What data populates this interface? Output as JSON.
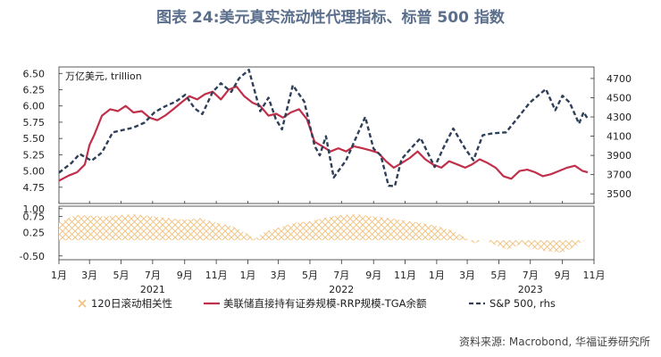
{
  "chart_data": {
    "type": "line",
    "title": "图表 24:美元真实流动性代理指标、标普 500 指数",
    "unit_label": "万亿美元, trillion",
    "source_note": "资料来源: Macrobond, 华福证券研究所",
    "x_ticks": [
      {
        "label": "1月",
        "date": "2021-01-01"
      },
      {
        "label": "3月",
        "date": "2021-03-01"
      },
      {
        "label": "5月",
        "date": "2021-05-01"
      },
      {
        "label": "7月",
        "date": "2021-07-01"
      },
      {
        "label": "9月",
        "date": "2021-09-01"
      },
      {
        "label": "11月",
        "date": "2021-11-01"
      },
      {
        "label": "1月",
        "date": "2022-01-01"
      },
      {
        "label": "3月",
        "date": "2022-03-01"
      },
      {
        "label": "5月",
        "date": "2022-05-01"
      },
      {
        "label": "7月",
        "date": "2022-07-01"
      },
      {
        "label": "9月",
        "date": "2022-09-01"
      },
      {
        "label": "11月",
        "date": "2022-11-01"
      },
      {
        "label": "1月",
        "date": "2023-01-01"
      },
      {
        "label": "3月",
        "date": "2023-03-01"
      },
      {
        "label": "5月",
        "date": "2023-05-01"
      },
      {
        "label": "7月",
        "date": "2023-07-01"
      },
      {
        "label": "9月",
        "date": "2023-09-01"
      },
      {
        "label": "11月",
        "date": "2023-11-01"
      }
    ],
    "year_labels": [
      {
        "label": "2021",
        "date": "2021-07-01"
      },
      {
        "label": "2022",
        "date": "2022-07-01"
      },
      {
        "label": "2023",
        "date": "2023-07-01"
      }
    ],
    "xlim": [
      "2021-01-01",
      "2023-11-01"
    ],
    "top_left_axis": {
      "ylim": [
        4.5,
        6.6
      ],
      "ticks": [
        "4.75",
        "5.00",
        "5.25",
        "5.50",
        "5.75",
        "6.00",
        "6.25",
        "6.50"
      ]
    },
    "top_right_axis": {
      "ylim": [
        3400,
        4820
      ],
      "ticks": [
        "3500",
        "3700",
        "3900",
        "4100",
        "4300",
        "4500",
        "4700"
      ]
    },
    "bottom_axis": {
      "ylim": [
        -0.62,
        1.08
      ],
      "ticks": [
        "1.00",
        "0.75",
        "0.25",
        "-0.50"
      ]
    },
    "series": [
      {
        "name": "美联储直接持有证券规模-RRP规模-TGA余额",
        "axis": "left",
        "color": "#c0304a",
        "style": "solid",
        "points": [
          [
            "2021-01-01",
            4.85
          ],
          [
            "2021-01-20",
            4.93
          ],
          [
            "2021-02-05",
            4.98
          ],
          [
            "2021-02-20",
            5.1
          ],
          [
            "2021-03-01",
            5.4
          ],
          [
            "2021-03-10",
            5.55
          ],
          [
            "2021-03-25",
            5.85
          ],
          [
            "2021-04-10",
            5.95
          ],
          [
            "2021-04-25",
            5.92
          ],
          [
            "2021-05-10",
            6.0
          ],
          [
            "2021-05-25",
            5.9
          ],
          [
            "2021-06-10",
            5.92
          ],
          [
            "2021-06-25",
            5.82
          ],
          [
            "2021-07-10",
            5.78
          ],
          [
            "2021-07-25",
            5.85
          ],
          [
            "2021-08-10",
            5.95
          ],
          [
            "2021-08-25",
            6.05
          ],
          [
            "2021-09-10",
            6.15
          ],
          [
            "2021-09-25",
            6.1
          ],
          [
            "2021-10-10",
            6.18
          ],
          [
            "2021-10-25",
            6.22
          ],
          [
            "2021-11-10",
            6.1
          ],
          [
            "2021-11-25",
            6.25
          ],
          [
            "2021-12-10",
            6.3
          ],
          [
            "2021-12-25",
            6.15
          ],
          [
            "2022-01-10",
            6.05
          ],
          [
            "2022-01-25",
            6.0
          ],
          [
            "2022-02-10",
            5.85
          ],
          [
            "2022-02-25",
            5.88
          ],
          [
            "2022-03-10",
            5.82
          ],
          [
            "2022-03-25",
            5.9
          ],
          [
            "2022-04-10",
            5.95
          ],
          [
            "2022-04-25",
            5.8
          ],
          [
            "2022-05-10",
            5.45
          ],
          [
            "2022-05-25",
            5.38
          ],
          [
            "2022-06-10",
            5.3
          ],
          [
            "2022-06-25",
            5.35
          ],
          [
            "2022-07-10",
            5.3
          ],
          [
            "2022-07-25",
            5.38
          ],
          [
            "2022-08-10",
            5.35
          ],
          [
            "2022-08-25",
            5.32
          ],
          [
            "2022-09-10",
            5.28
          ],
          [
            "2022-09-25",
            5.15
          ],
          [
            "2022-10-10",
            5.05
          ],
          [
            "2022-10-25",
            5.12
          ],
          [
            "2022-11-10",
            5.2
          ],
          [
            "2022-11-25",
            5.3
          ],
          [
            "2022-12-10",
            5.18
          ],
          [
            "2022-12-25",
            5.1
          ],
          [
            "2023-01-10",
            5.05
          ],
          [
            "2023-01-25",
            5.15
          ],
          [
            "2023-02-10",
            5.1
          ],
          [
            "2023-02-25",
            5.05
          ],
          [
            "2023-03-10",
            5.1
          ],
          [
            "2023-03-25",
            5.18
          ],
          [
            "2023-04-10",
            5.12
          ],
          [
            "2023-04-25",
            5.05
          ],
          [
            "2023-05-10",
            4.92
          ],
          [
            "2023-05-25",
            4.88
          ],
          [
            "2023-06-10",
            5.0
          ],
          [
            "2023-06-25",
            5.02
          ],
          [
            "2023-07-10",
            4.98
          ],
          [
            "2023-07-25",
            4.92
          ],
          [
            "2023-08-10",
            4.95
          ],
          [
            "2023-08-25",
            5.0
          ],
          [
            "2023-09-10",
            5.05
          ],
          [
            "2023-09-25",
            5.08
          ],
          [
            "2023-10-10",
            5.0
          ],
          [
            "2023-10-20",
            4.98
          ]
        ]
      },
      {
        "name": "S&P 500, rhs",
        "axis": "right",
        "color": "#2e3f58",
        "style": "dashed",
        "points": [
          [
            "2021-01-01",
            3720
          ],
          [
            "2021-01-25",
            3820
          ],
          [
            "2021-02-10",
            3915
          ],
          [
            "2021-03-05",
            3845
          ],
          [
            "2021-03-25",
            3930
          ],
          [
            "2021-04-15",
            4140
          ],
          [
            "2021-05-10",
            4170
          ],
          [
            "2021-05-25",
            4190
          ],
          [
            "2021-06-15",
            4240
          ],
          [
            "2021-07-05",
            4350
          ],
          [
            "2021-07-25",
            4410
          ],
          [
            "2021-08-15",
            4460
          ],
          [
            "2021-09-02",
            4530
          ],
          [
            "2021-09-20",
            4390
          ],
          [
            "2021-10-05",
            4330
          ],
          [
            "2021-10-25",
            4560
          ],
          [
            "2021-11-10",
            4650
          ],
          [
            "2021-11-30",
            4560
          ],
          [
            "2021-12-15",
            4700
          ],
          [
            "2022-01-03",
            4790
          ],
          [
            "2022-01-25",
            4360
          ],
          [
            "2022-02-10",
            4500
          ],
          [
            "2022-02-24",
            4280
          ],
          [
            "2022-03-08",
            4170
          ],
          [
            "2022-03-29",
            4630
          ],
          [
            "2022-04-20",
            4460
          ],
          [
            "2022-05-10",
            4000
          ],
          [
            "2022-05-20",
            3900
          ],
          [
            "2022-06-01",
            4100
          ],
          [
            "2022-06-16",
            3670
          ],
          [
            "2022-07-10",
            3850
          ],
          [
            "2022-08-01",
            4120
          ],
          [
            "2022-08-16",
            4300
          ],
          [
            "2022-09-01",
            3970
          ],
          [
            "2022-09-15",
            3900
          ],
          [
            "2022-09-30",
            3585
          ],
          [
            "2022-10-12",
            3580
          ],
          [
            "2022-10-25",
            3860
          ],
          [
            "2022-11-15",
            3990
          ],
          [
            "2022-12-01",
            4080
          ],
          [
            "2022-12-28",
            3780
          ],
          [
            "2023-01-15",
            3990
          ],
          [
            "2023-02-02",
            4180
          ],
          [
            "2023-02-25",
            3970
          ],
          [
            "2023-03-13",
            3850
          ],
          [
            "2023-03-31",
            4110
          ],
          [
            "2023-04-20",
            4130
          ],
          [
            "2023-05-15",
            4140
          ],
          [
            "2023-06-05",
            4280
          ],
          [
            "2023-06-30",
            4450
          ],
          [
            "2023-07-31",
            4590
          ],
          [
            "2023-08-18",
            4370
          ],
          [
            "2023-09-01",
            4520
          ],
          [
            "2023-09-15",
            4450
          ],
          [
            "2023-10-03",
            4230
          ],
          [
            "2023-10-12",
            4350
          ],
          [
            "2023-10-20",
            4280
          ]
        ]
      },
      {
        "name": "120日滚动相关性",
        "axis": "bottom",
        "color": "#f2c07a",
        "style": "crosshatch-area",
        "points": [
          [
            "2021-01-01",
            0.55
          ],
          [
            "2021-02-01",
            0.8
          ],
          [
            "2021-03-01",
            0.78
          ],
          [
            "2021-04-01",
            0.75
          ],
          [
            "2021-05-01",
            0.8
          ],
          [
            "2021-06-01",
            0.82
          ],
          [
            "2021-07-01",
            0.75
          ],
          [
            "2021-08-01",
            0.7
          ],
          [
            "2021-09-01",
            0.65
          ],
          [
            "2021-10-01",
            0.7
          ],
          [
            "2021-11-01",
            0.55
          ],
          [
            "2021-12-01",
            0.45
          ],
          [
            "2022-01-01",
            0.2
          ],
          [
            "2022-01-15",
            0.05
          ],
          [
            "2022-02-01",
            0.25
          ],
          [
            "2022-03-01",
            0.4
          ],
          [
            "2022-04-01",
            0.55
          ],
          [
            "2022-05-01",
            0.6
          ],
          [
            "2022-06-01",
            0.72
          ],
          [
            "2022-07-01",
            0.8
          ],
          [
            "2022-08-01",
            0.82
          ],
          [
            "2022-09-01",
            0.75
          ],
          [
            "2022-10-01",
            0.7
          ],
          [
            "2022-11-01",
            0.62
          ],
          [
            "2022-12-01",
            0.55
          ],
          [
            "2023-01-01",
            0.45
          ],
          [
            "2023-02-01",
            0.3
          ],
          [
            "2023-03-01",
            0.05
          ],
          [
            "2023-03-15",
            -0.1
          ],
          [
            "2023-04-01",
            0.02
          ],
          [
            "2023-05-01",
            -0.2
          ],
          [
            "2023-05-20",
            -0.3
          ],
          [
            "2023-06-15",
            -0.1
          ],
          [
            "2023-07-01",
            -0.25
          ],
          [
            "2023-08-01",
            -0.35
          ],
          [
            "2023-09-01",
            -0.4
          ],
          [
            "2023-09-25",
            -0.2
          ],
          [
            "2023-10-20",
            0.05
          ]
        ]
      }
    ],
    "legend_placement": "bottom"
  }
}
